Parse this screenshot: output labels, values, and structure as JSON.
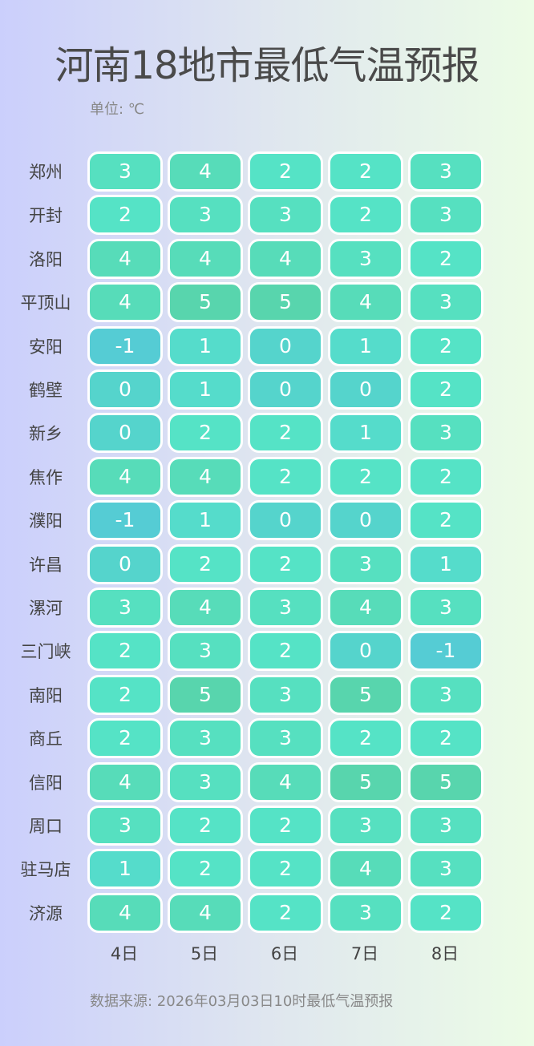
{
  "title": "河南18地市最低气温预报",
  "unit": "单位: ℃",
  "source": "数据来源: 2026年03月03日10时最低气温预报",
  "chart_data": {
    "type": "heatmap",
    "title": "河南18地市最低气温预报",
    "columns": [
      "4日",
      "5日",
      "6日",
      "7日",
      "8日"
    ],
    "rows": [
      "郑州",
      "开封",
      "洛阳",
      "平顶山",
      "安阳",
      "鹤壁",
      "新乡",
      "焦作",
      "濮阳",
      "许昌",
      "漯河",
      "三门峡",
      "南阳",
      "商丘",
      "信阳",
      "周口",
      "驻马店",
      "济源"
    ],
    "values": [
      [
        3,
        4,
        2,
        2,
        3
      ],
      [
        2,
        3,
        3,
        2,
        3
      ],
      [
        4,
        4,
        4,
        3,
        2
      ],
      [
        4,
        5,
        5,
        4,
        3
      ],
      [
        -1,
        1,
        0,
        1,
        2
      ],
      [
        0,
        1,
        0,
        0,
        2
      ],
      [
        0,
        2,
        2,
        1,
        3
      ],
      [
        4,
        4,
        2,
        2,
        2
      ],
      [
        -1,
        1,
        0,
        0,
        2
      ],
      [
        0,
        2,
        2,
        3,
        1
      ],
      [
        3,
        4,
        3,
        4,
        3
      ],
      [
        2,
        3,
        2,
        0,
        -1
      ],
      [
        2,
        5,
        3,
        5,
        3
      ],
      [
        2,
        3,
        3,
        2,
        2
      ],
      [
        4,
        3,
        4,
        5,
        5
      ],
      [
        3,
        2,
        2,
        3,
        3
      ],
      [
        1,
        2,
        2,
        4,
        3
      ],
      [
        4,
        4,
        2,
        3,
        2
      ]
    ],
    "colors": {
      "-1": "#55ccd4",
      "0": "#55d4cc",
      "1": "#55dccb",
      "2": "#55e3c6",
      "3": "#56e0c0",
      "4": "#57dcb9",
      "5": "#58d5ad"
    }
  }
}
